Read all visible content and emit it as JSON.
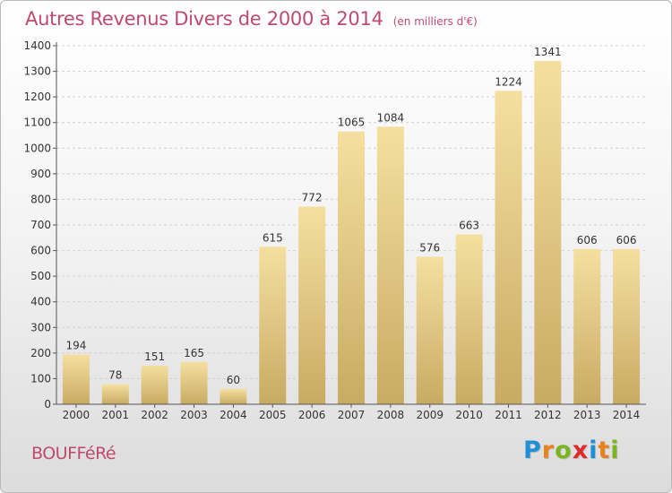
{
  "header": {
    "title": "Autres Revenus Divers de 2000 à 2014",
    "subtitle": "(en milliers d'€)"
  },
  "footer": {
    "commune": "BOUFFéRé",
    "logo_letters": [
      "P",
      "r",
      "o",
      "x",
      "i",
      "t",
      "i"
    ],
    "logo_colors": [
      "#1f8fd6",
      "#e8821e",
      "#7ab51d",
      "#e02b2b",
      "#1f8fd6",
      "#e8821e",
      "#7ab51d"
    ]
  },
  "colors": {
    "bar_light": "#f5dfa0",
    "bar_dark": "#c8ab63",
    "axis": "#555555",
    "grid": "#d0d0d0",
    "title": "#c04a6e"
  },
  "chart_data": {
    "type": "bar",
    "categories": [
      "2000",
      "2001",
      "2002",
      "2003",
      "2004",
      "2005",
      "2006",
      "2007",
      "2008",
      "2009",
      "2010",
      "2011",
      "2012",
      "2013",
      "2014"
    ],
    "values": [
      194,
      78,
      151,
      165,
      60,
      615,
      772,
      1065,
      1084,
      576,
      663,
      1224,
      1341,
      606,
      606
    ],
    "yticks": [
      0,
      100,
      200,
      300,
      400,
      500,
      600,
      700,
      800,
      900,
      1000,
      1100,
      1200,
      1300,
      1400
    ],
    "ylim": [
      0,
      1400
    ],
    "grid": true,
    "legend": "none"
  }
}
